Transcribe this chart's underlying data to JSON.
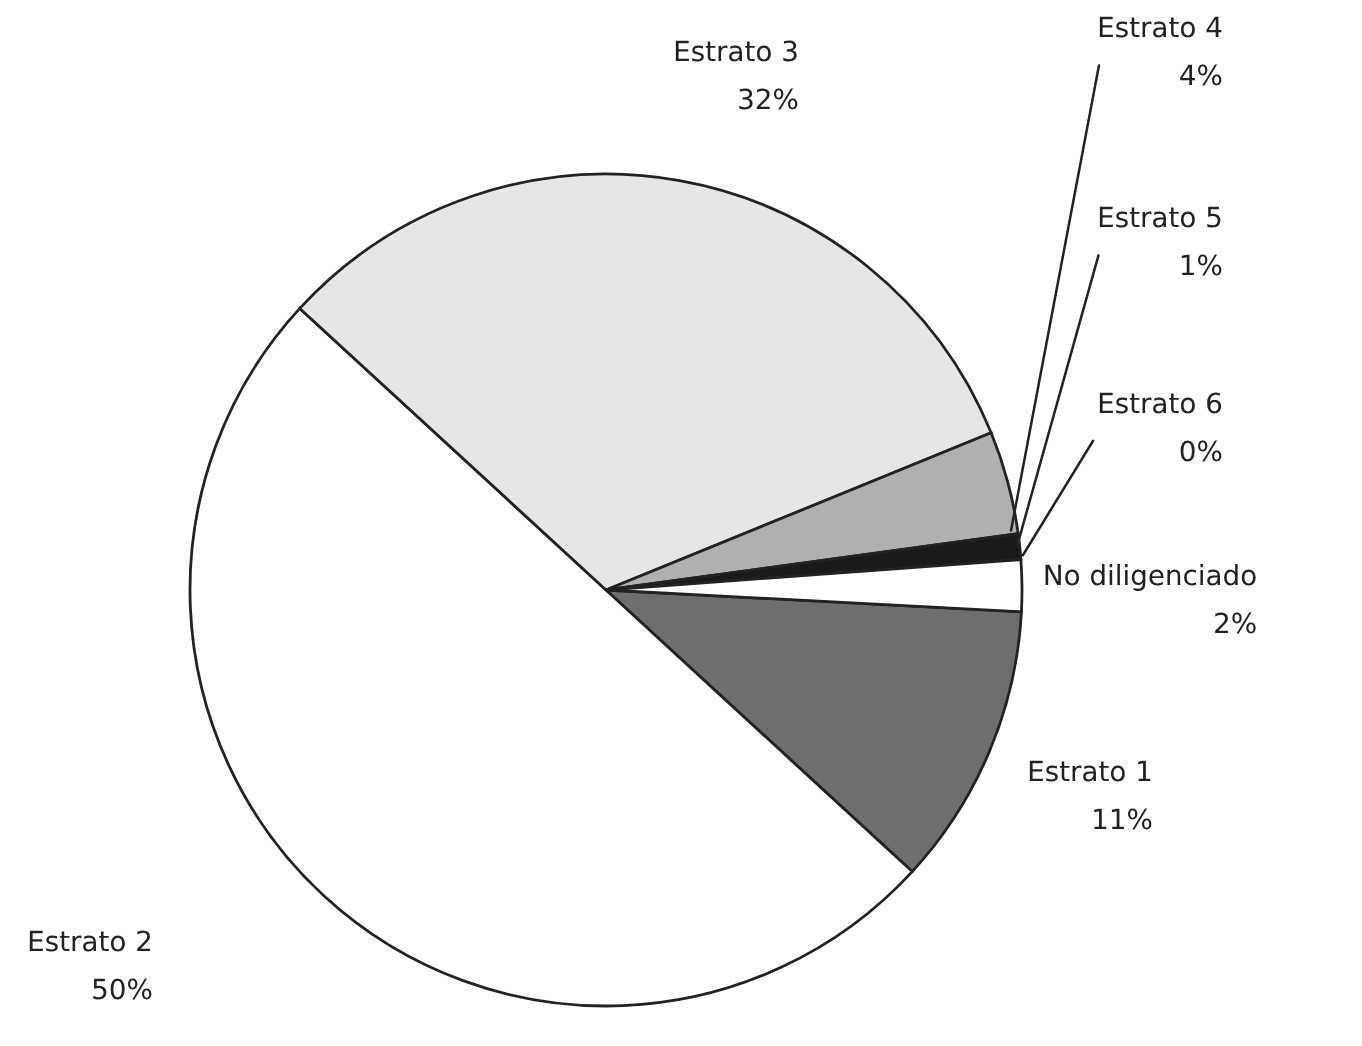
{
  "chart_data": {
    "type": "pie",
    "categories": [
      "Estrato 1",
      "Estrato 2",
      "Estrato 3",
      "Estrato 4",
      "Estrato 5",
      "Estrato 6",
      "No diligenciado"
    ],
    "values": [
      11,
      50,
      32,
      4,
      1,
      0,
      2
    ],
    "value_labels": [
      "11%",
      "50%",
      "32%",
      "4%",
      "1%",
      "0%",
      "2%"
    ],
    "colors": [
      "#6e6e6e",
      "#ffffff",
      "#e6e6e6",
      "#b0b0b0",
      "#1a1a1a",
      "#4a4a4a",
      "#ffffff"
    ]
  }
}
